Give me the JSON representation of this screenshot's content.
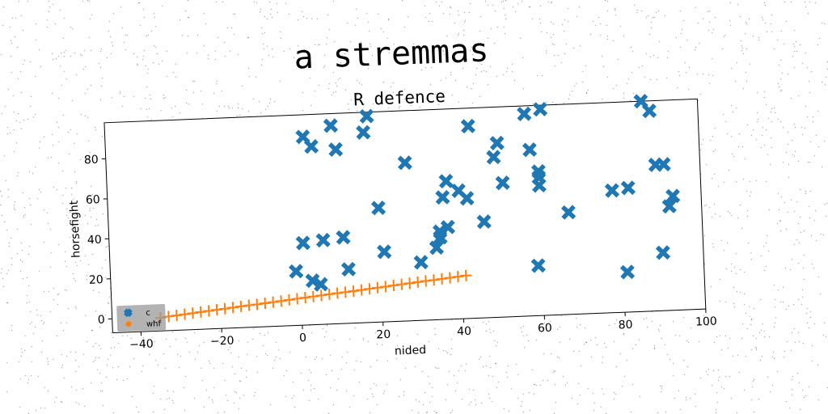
{
  "chart_data": {
    "type": "scatter",
    "suptitle": "a stremmas",
    "title": "R defence",
    "xlabel": "nided",
    "ylabel": "horsefight",
    "xlim": [
      -47,
      100
    ],
    "ylim": [
      -7,
      98
    ],
    "xticks": [
      -40,
      -20,
      0,
      20,
      40,
      60,
      80,
      100
    ],
    "yticks": [
      0,
      20,
      40,
      60,
      80
    ],
    "grid": false,
    "legend_position": "lower-left",
    "series": [
      {
        "name": "c",
        "color": "#1f77b4",
        "marker": "X",
        "points": [
          [
            2,
            87
          ],
          [
            4,
            82
          ],
          [
            9,
            92
          ],
          [
            10,
            80
          ],
          [
            17,
            88
          ],
          [
            18,
            96
          ],
          [
            20,
            50
          ],
          [
            21,
            28
          ],
          [
            27,
            72
          ],
          [
            30,
            22
          ],
          [
            34,
            29
          ],
          [
            35,
            37
          ],
          [
            35,
            34
          ],
          [
            36,
            54
          ],
          [
            37,
            39
          ],
          [
            37,
            62
          ],
          [
            40,
            57
          ],
          [
            42,
            53
          ],
          [
            43,
            89
          ],
          [
            46,
            41
          ],
          [
            49,
            73
          ],
          [
            50,
            80
          ],
          [
            51,
            60
          ],
          [
            57,
            94
          ],
          [
            58,
            76
          ],
          [
            59,
            18
          ],
          [
            60,
            58
          ],
          [
            60,
            65
          ],
          [
            60,
            62
          ],
          [
            61,
            96
          ],
          [
            67,
            44
          ],
          [
            78,
            54
          ],
          [
            81,
            13
          ],
          [
            82,
            55
          ],
          [
            86,
            98
          ],
          [
            88,
            93
          ],
          [
            89,
            66
          ],
          [
            90,
            22
          ],
          [
            91,
            66
          ],
          [
            92,
            45
          ],
          [
            93,
            50
          ],
          [
            -1,
            20
          ],
          [
            1,
            34
          ],
          [
            3,
            15
          ],
          [
            5,
            13
          ],
          [
            6,
            35
          ],
          [
            11,
            36
          ],
          [
            12,
            20
          ]
        ]
      },
      {
        "name": "whf",
        "color": "#ff7f0e",
        "marker": "+",
        "points": [
          [
            -35,
            -0.5
          ],
          [
            -33,
            0
          ],
          [
            -31,
            0.4
          ],
          [
            -29,
            0.8
          ],
          [
            -27,
            1.2
          ],
          [
            -25,
            1.6
          ],
          [
            -23,
            2
          ],
          [
            -21,
            2.4
          ],
          [
            -19,
            2.8
          ],
          [
            -17,
            3.2
          ],
          [
            -15,
            3.6
          ],
          [
            -13,
            4
          ],
          [
            -11,
            4.3
          ],
          [
            -9,
            4.7
          ],
          [
            -7,
            5.1
          ],
          [
            -5,
            5.5
          ],
          [
            -3,
            5.9
          ],
          [
            -1,
            6.3
          ],
          [
            1,
            6.7
          ],
          [
            3,
            7.1
          ],
          [
            5,
            7.5
          ],
          [
            7,
            7.9
          ],
          [
            9,
            8.3
          ],
          [
            11,
            8.6
          ],
          [
            13,
            9
          ],
          [
            15,
            9.4
          ],
          [
            17,
            9.8
          ],
          [
            19,
            10.2
          ],
          [
            21,
            10.6
          ],
          [
            23,
            11
          ],
          [
            25,
            11.4
          ],
          [
            27,
            11.8
          ],
          [
            29,
            12.2
          ],
          [
            31,
            12.6
          ],
          [
            33,
            12.9
          ],
          [
            35,
            13.3
          ],
          [
            37,
            13.7
          ],
          [
            39,
            14.1
          ],
          [
            41,
            14.5
          ]
        ]
      }
    ]
  }
}
